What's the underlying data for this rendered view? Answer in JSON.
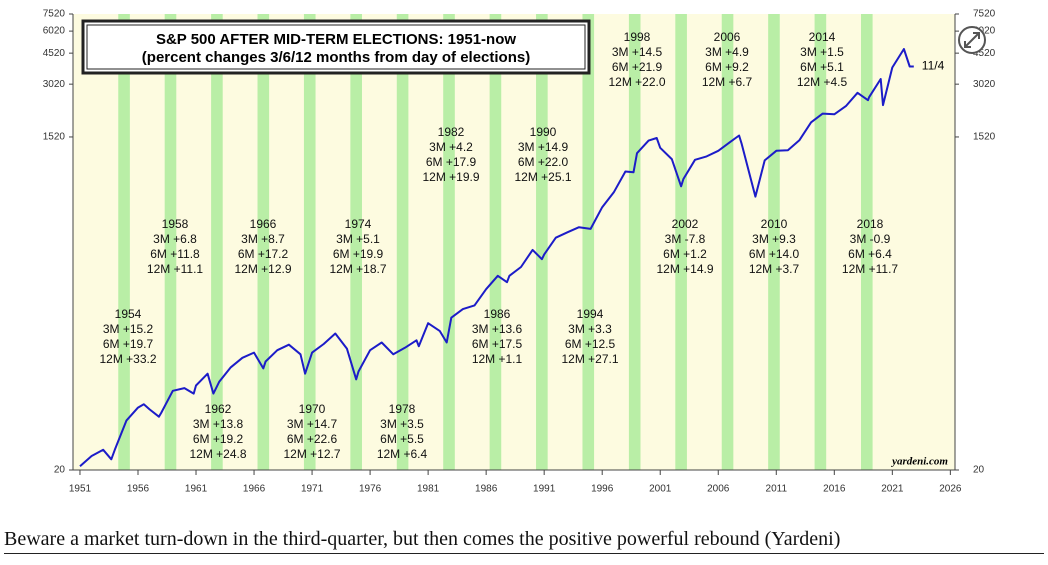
{
  "chart_data": {
    "type": "line",
    "title": "S&P 500 AFTER MID-TERM ELECTIONS: 1951-now",
    "subtitle": "(percent changes 3/6/12 months from day of elections)",
    "log_scale": true,
    "ylim": [
      20,
      7520
    ],
    "yticks": [
      20,
      1520,
      3020,
      4520,
      6020,
      7520
    ],
    "xlim": [
      1950.4,
      2026.4
    ],
    "xticks": [
      1951,
      1956,
      1961,
      1966,
      1971,
      1976,
      1981,
      1986,
      1991,
      1996,
      2001,
      2006,
      2011,
      2016,
      2021,
      2026
    ],
    "x": [
      1951,
      1952,
      1953,
      1953.7,
      1954,
      1955,
      1956,
      1956.5,
      1957,
      1957.8,
      1958,
      1959,
      1960,
      1960.8,
      1961,
      1962,
      1962.5,
      1963,
      1964,
      1965,
      1966,
      1966.8,
      1967,
      1968,
      1969,
      1970,
      1970.4,
      1971,
      1972,
      1973,
      1974,
      1974.8,
      1975,
      1976,
      1977,
      1978,
      1979,
      1980,
      1980.2,
      1981,
      1982,
      1982.6,
      1983,
      1984,
      1985,
      1986,
      1987,
      1987.8,
      1988,
      1989,
      1990,
      1990.8,
      1991,
      1992,
      1993,
      1994,
      1995,
      1996,
      1997,
      1998,
      1998.7,
      1999,
      2000,
      2000.7,
      2001,
      2002,
      2002.8,
      2003,
      2004,
      2005,
      2006,
      2007,
      2007.8,
      2008,
      2009.2,
      2010,
      2011,
      2012,
      2013,
      2014,
      2015,
      2016,
      2017,
      2018,
      2018.9,
      2019,
      2020,
      2020.2,
      2021,
      2022,
      2022.5,
      2022.85
    ],
    "series": [
      {
        "color": "#1c1cc8",
        "values": [
          21,
          24,
          26,
          23,
          26,
          38,
          45,
          47,
          44,
          40,
          42,
          56,
          58,
          54,
          60,
          70,
          54,
          63,
          76,
          86,
          92,
          75,
          82,
          95,
          102,
          90,
          70,
          92,
          103,
          118,
          97,
          65,
          72,
          95,
          105,
          90,
          98,
          108,
          100,
          135,
          122,
          105,
          145,
          162,
          170,
          210,
          250,
          230,
          250,
          280,
          350,
          310,
          330,
          410,
          440,
          470,
          460,
          610,
          740,
          970,
          960,
          1230,
          1450,
          1500,
          1320,
          1140,
          800,
          880,
          1130,
          1180,
          1270,
          1420,
          1550,
          1400,
          700,
          1120,
          1270,
          1280,
          1460,
          1840,
          2060,
          2040,
          2270,
          2700,
          2450,
          2550,
          3230,
          2300,
          3750,
          4770,
          3800,
          3800
        ]
      }
    ],
    "annotations": [
      {
        "year": 1954,
        "lines": [
          "3M +15.2",
          "6M +19.7",
          "12M +33.2"
        ]
      },
      {
        "year": 1958,
        "lines": [
          "3M +6.8",
          "6M +11.8",
          "12M +11.1"
        ]
      },
      {
        "year": 1962,
        "lines": [
          "3M +13.8",
          "6M +19.2",
          "12M +24.8"
        ]
      },
      {
        "year": 1966,
        "lines": [
          "3M +8.7",
          "6M +17.2",
          "12M +12.9"
        ]
      },
      {
        "year": 1970,
        "lines": [
          "3M +14.7",
          "6M +22.6",
          "12M +12.7"
        ]
      },
      {
        "year": 1974,
        "lines": [
          "3M +5.1",
          "6M +19.9",
          "12M +18.7"
        ]
      },
      {
        "year": 1978,
        "lines": [
          "3M +3.5",
          "6M +5.5",
          "12M +6.4"
        ]
      },
      {
        "year": 1982,
        "lines": [
          "3M +4.2",
          "6M +17.9",
          "12M +19.9"
        ]
      },
      {
        "year": 1986,
        "lines": [
          "3M +13.6",
          "6M +17.5",
          "12M +1.1"
        ]
      },
      {
        "year": 1990,
        "lines": [
          "3M +14.9",
          "6M +22.0",
          "12M +25.1"
        ]
      },
      {
        "year": 1994,
        "lines": [
          "3M +3.3",
          "6M +12.5",
          "12M +27.1"
        ]
      },
      {
        "year": 1998,
        "lines": [
          "3M +14.5",
          "6M +21.9",
          "12M +22.0"
        ]
      },
      {
        "year": 2002,
        "lines": [
          "3M -7.8",
          "6M +1.2",
          "12M +14.9"
        ]
      },
      {
        "year": 2006,
        "lines": [
          "3M +4.9",
          "6M +9.2",
          "12M +6.7"
        ]
      },
      {
        "year": 2010,
        "lines": [
          "3M +9.3",
          "6M +14.0",
          "12M +3.7"
        ]
      },
      {
        "year": 2014,
        "lines": [
          "3M +1.5",
          "6M +5.1",
          "12M +4.5"
        ]
      },
      {
        "year": 2018,
        "lines": [
          "3M -0.9",
          "6M +6.4",
          "12M +11.7"
        ]
      }
    ],
    "end_label": "11/4",
    "source": "yardeni.com"
  },
  "caption": "Beware a market turn-down in the third-quarter, but then comes the positive powerful rebound (Yardeni)"
}
